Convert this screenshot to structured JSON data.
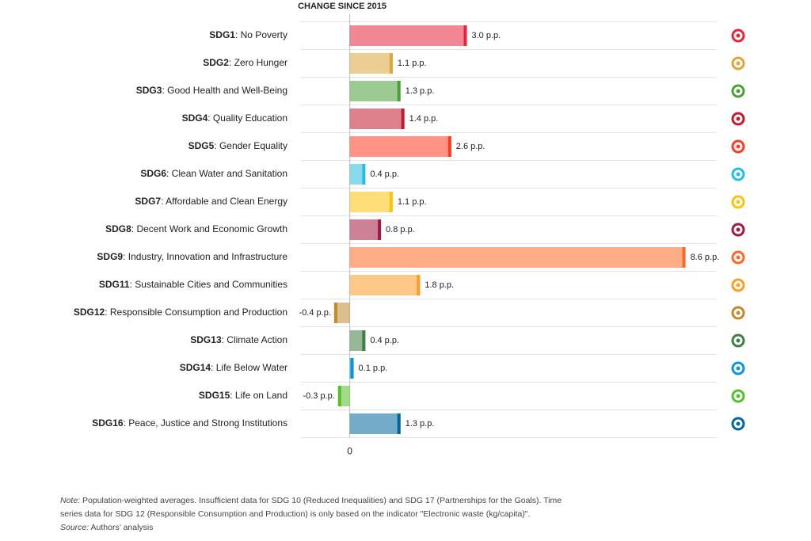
{
  "chart_data": {
    "type": "hbar",
    "title": "CHANGE SINCE 2015",
    "codes": [
      "SDG1",
      "SDG2",
      "SDG3",
      "SDG4",
      "SDG5",
      "SDG6",
      "SDG7",
      "SDG8",
      "SDG9",
      "SDG11",
      "SDG12",
      "SDG13",
      "SDG14",
      "SDG15",
      "SDG16"
    ],
    "categories": [
      ": No Poverty",
      ": Zero Hunger",
      ": Good Health and Well-Being",
      ": Quality Education",
      ": Gender Equality",
      ": Clean Water and Sanitation",
      ": Affordable and Clean Energy",
      ": Decent Work and Economic Growth",
      ": Industry, Innovation and Infrastructure",
      ": Sustainable Cities and Communities",
      ": Responsible Consumption and Production",
      ": Climate Action",
      ": Life Below Water",
      ": Life on Land",
      ": Peace, Justice and Strong Institutions"
    ],
    "values": [
      3.0,
      1.1,
      1.3,
      1.4,
      2.6,
      0.4,
      1.1,
      0.8,
      8.6,
      1.8,
      -0.4,
      0.4,
      0.1,
      -0.3,
      1.3
    ],
    "value_labels": [
      "3.0 p.p.",
      "1.1 p.p.",
      "1.3 p.p.",
      "1.4 p.p.",
      "2.6 p.p.",
      "0.4 p.p.",
      "1.1 p.p.",
      "0.8 p.p.",
      "8.6 p.p.",
      "1.8 p.p.",
      "-0.4 p.p.",
      "0.4 p.p.",
      "0.1 p.p.",
      "-0.3 p.p.",
      "1.3 p.p."
    ],
    "colors": [
      "#e5243b",
      "#dda63a",
      "#4c9f38",
      "#c5192d",
      "#ff3a21",
      "#26bde2",
      "#fcc30b",
      "#a21942",
      "#fd6925",
      "#fd9d24",
      "#bf8b2e",
      "#3f7e44",
      "#0a97d9",
      "#56c02b",
      "#00689d"
    ],
    "xlim": [
      -1.25,
      9.4
    ],
    "xticks": [
      0
    ],
    "note_label": "Note:",
    "note": [
      "Population-weighted averages. Insufficient data for SDG 10 (Reduced Inequalities) and SDG 17 (Partnerships for the Goals). Time",
      "series data for SDG 12 (Responsible Consumption and Production) is only based on the indicator \"Electronic waste (kg/capita)\"."
    ],
    "source_label": "Source:",
    "source": "Authors’ analysis"
  }
}
